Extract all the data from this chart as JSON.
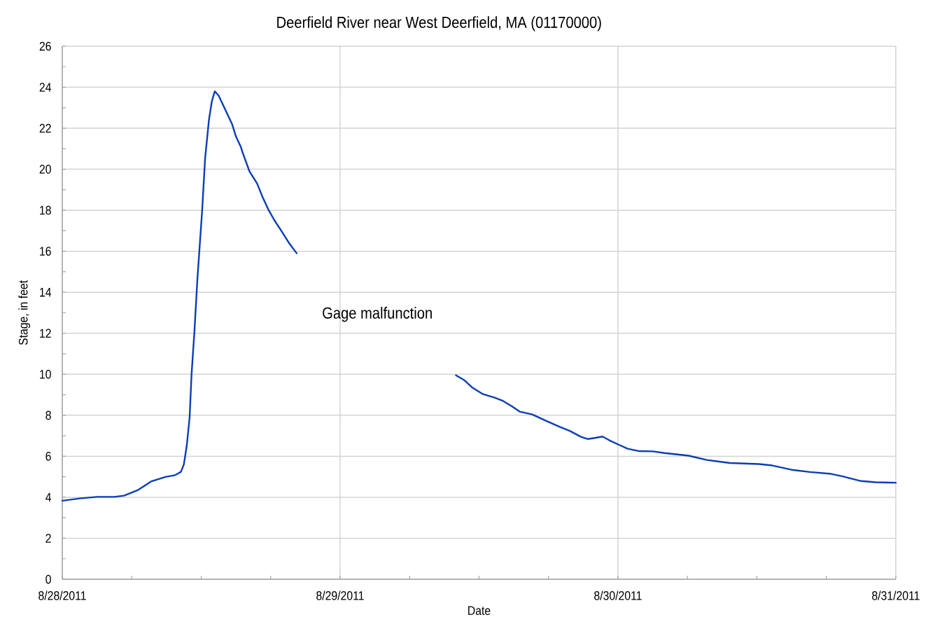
{
  "chart_data": {
    "type": "line",
    "title": "Deerfield River near West Deerfield, MA (01170000)",
    "xlabel": "Date",
    "ylabel": "Stage, in feet",
    "x": [
      "2011-08-28T00:00",
      "2011-08-28T01:30",
      "2011-08-28T03:00",
      "2011-08-28T04:30",
      "2011-08-28T05:20",
      "2011-08-28T06:30",
      "2011-08-28T07:40",
      "2011-08-28T08:55",
      "2011-08-28T09:45",
      "2011-08-28T10:15",
      "2011-08-28T10:30",
      "2011-08-28T10:45",
      "2011-08-28T11:00",
      "2011-08-28T11:10",
      "2011-08-28T11:25",
      "2011-08-28T11:40",
      "2011-08-28T12:05",
      "2011-08-28T12:20",
      "2011-08-28T12:40",
      "2011-08-28T12:55",
      "2011-08-28T13:10",
      "2011-08-28T13:30",
      "2011-08-28T13:45",
      "2011-08-28T14:15",
      "2011-08-28T14:40",
      "2011-08-28T15:00",
      "2011-08-28T15:25",
      "2011-08-28T15:35",
      "2011-08-28T16:10",
      "2011-08-28T16:50",
      "2011-08-28T17:20",
      "2011-08-28T17:50",
      "2011-08-28T18:20",
      "2011-08-28T18:55",
      "2011-08-28T19:35",
      "2011-08-28T20:15",
      "2011-08-29T03:00",
      "2011-08-29T10:00",
      "2011-08-29T10:45",
      "2011-08-29T11:25",
      "2011-08-29T12:20",
      "2011-08-29T13:20",
      "2011-08-29T14:00",
      "2011-08-29T14:50",
      "2011-08-29T15:30",
      "2011-08-29T16:35",
      "2011-08-29T17:50",
      "2011-08-29T19:00",
      "2011-08-29T19:50",
      "2011-08-29T20:50",
      "2011-08-29T21:25",
      "2011-08-29T22:05",
      "2011-08-29T22:40",
      "2011-08-29T23:15",
      "2011-08-30T00:05",
      "2011-08-30T00:50",
      "2011-08-30T01:50",
      "2011-08-30T03:00",
      "2011-08-30T04:00",
      "2011-08-30T06:05",
      "2011-08-30T07:40",
      "2011-08-30T09:40",
      "2011-08-30T12:10",
      "2011-08-30T13:20",
      "2011-08-30T15:00",
      "2011-08-30T16:35",
      "2011-08-30T18:25",
      "2011-08-30T19:25",
      "2011-08-30T21:00",
      "2011-08-30T22:15",
      "2011-08-31T00:00"
    ],
    "values": [
      3.83,
      3.94,
      4.02,
      4.02,
      4.08,
      4.34,
      4.77,
      4.99,
      5.08,
      5.24,
      5.6,
      6.5,
      7.9,
      10.0,
      12.1,
      14.6,
      18.0,
      20.5,
      22.4,
      23.3,
      23.8,
      23.6,
      23.3,
      22.7,
      22.2,
      21.6,
      21.1,
      20.8,
      19.9,
      19.3,
      18.6,
      18.0,
      17.5,
      17.0,
      16.4,
      15.9,
      null,
      9.95,
      9.7,
      9.35,
      9.03,
      8.86,
      8.72,
      8.44,
      8.18,
      8.04,
      7.72,
      7.43,
      7.24,
      6.94,
      6.84,
      6.9,
      6.96,
      6.78,
      6.56,
      6.37,
      6.25,
      6.24,
      6.16,
      6.03,
      5.82,
      5.67,
      5.62,
      5.55,
      5.34,
      5.23,
      5.14,
      5.02,
      4.79,
      4.73,
      4.71
    ],
    "color": "#0b3eb4",
    "xlim": [
      "2011-08-28",
      "2011-08-31"
    ],
    "xticks": [
      {
        "value": "2011-08-28",
        "label": "8/28/2011"
      },
      {
        "value": "2011-08-28T06:00",
        "label": null
      },
      {
        "value": "2011-08-28T12:00",
        "label": null
      },
      {
        "value": "2011-08-28T18:00",
        "label": null
      },
      {
        "value": "2011-08-29",
        "label": "8/29/2011"
      },
      {
        "value": "2011-08-29T06:00",
        "label": null
      },
      {
        "value": "2011-08-29T12:00",
        "label": null
      },
      {
        "value": "2011-08-29T18:00",
        "label": null
      },
      {
        "value": "2011-08-30",
        "label": "8/30/2011"
      },
      {
        "value": "2011-08-30T06:00",
        "label": null
      },
      {
        "value": "2011-08-30T12:00",
        "label": null
      },
      {
        "value": "2011-08-30T18:00",
        "label": null
      },
      {
        "value": "2011-08-31",
        "label": "8/31/2011"
      }
    ],
    "ylim": [
      0,
      26
    ],
    "yticks": [
      0,
      {
        "value": 1,
        "label": null
      },
      2,
      {
        "value": 3,
        "label": null
      },
      4,
      {
        "value": 5,
        "label": null
      },
      6,
      {
        "value": 7,
        "label": null
      },
      8,
      {
        "value": 9,
        "label": null
      },
      10,
      {
        "value": 11,
        "label": null
      },
      12,
      {
        "value": 13,
        "label": null
      },
      14,
      {
        "value": 15,
        "label": null
      },
      16,
      {
        "value": 17,
        "label": null
      },
      18,
      {
        "value": 19,
        "label": null
      },
      20,
      {
        "value": 21,
        "label": null
      },
      22,
      {
        "value": 23,
        "label": null
      },
      24,
      {
        "value": 25,
        "label": null
      },
      26
    ],
    "grid": true,
    "annotations": [
      "Gage malfunction"
    ]
  }
}
